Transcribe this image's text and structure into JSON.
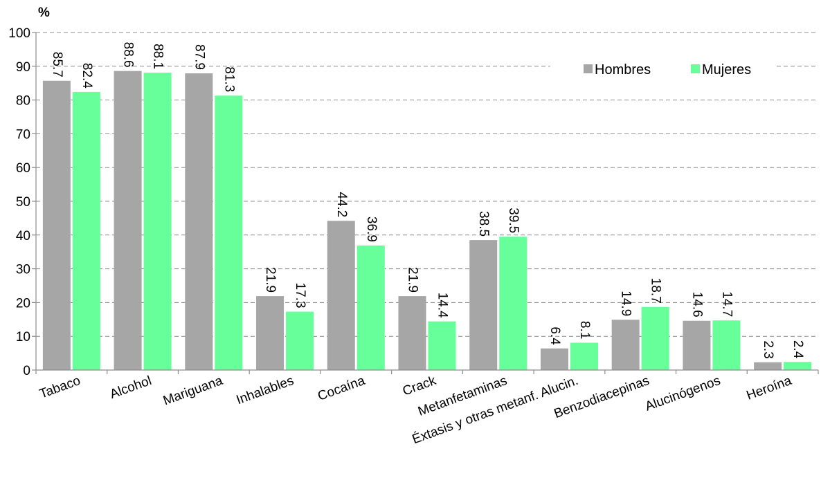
{
  "chart_data": {
    "type": "bar",
    "unit_label": "%",
    "categories": [
      "Tabaco",
      "Alcohol",
      "Mariguana",
      "Inhalables",
      "Cocaína",
      "Crack",
      "Metanfetaminas",
      "Éxtasis y otras metanf. Alucin.",
      "Benzodiacepinas",
      "Alucinógenos",
      "Heroína"
    ],
    "series": [
      {
        "name": "Hombres",
        "color": "#a6a6a6",
        "values": [
          85.7,
          88.6,
          87.9,
          21.9,
          44.2,
          21.9,
          38.5,
          6.4,
          14.9,
          14.6,
          2.3
        ]
      },
      {
        "name": "Mujeres",
        "color": "#66ff99",
        "values": [
          82.4,
          88.1,
          81.3,
          17.3,
          36.9,
          14.4,
          39.5,
          8.1,
          18.7,
          14.7,
          2.4
        ]
      }
    ],
    "ylim": [
      0,
      100
    ],
    "yticks": [
      0,
      10,
      20,
      30,
      40,
      50,
      60,
      70,
      80,
      90,
      100
    ],
    "grid": true,
    "legend_position": "top-right"
  }
}
